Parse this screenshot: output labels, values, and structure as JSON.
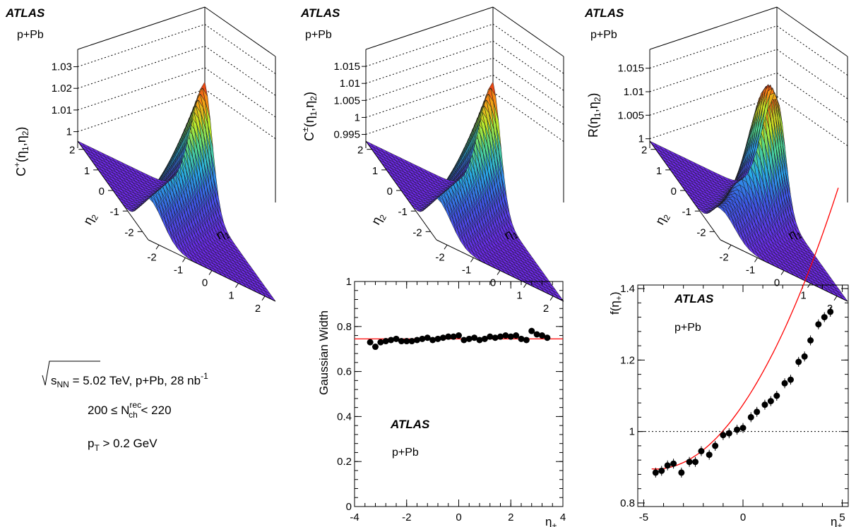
{
  "collaboration": "ATLAS",
  "system": "p+Pb",
  "info": {
    "sqrt_label": "s",
    "sqrt_sub": "NN",
    "energy_text": " = 5.02 TeV, p+Pb, 28 nb",
    "energy_sup": "-1",
    "mult_pre": "200 ≤ N",
    "mult_sup": "rec",
    "mult_sub": "ch",
    "mult_post": " < 220",
    "pt_pre": "p",
    "pt_sub": "T",
    "pt_post": " > 0.2 GeV"
  },
  "colors": {
    "fit_line": "#ff0000",
    "markers": "#000000"
  },
  "chart_data": [
    {
      "type": "surface",
      "zlabel": "C+(η1,η2)",
      "xlabel": "η1",
      "ylabel": "η2",
      "x_ticks": [
        "-2",
        "-1",
        "0",
        "1",
        "2"
      ],
      "y_ticks": [
        "-2",
        "-1",
        "0",
        "1",
        "2"
      ],
      "z_ticks": [
        "1",
        "1.01",
        "1.02",
        "1.03"
      ],
      "zlim": [
        0.994,
        1.038
      ],
      "peak": 1.036,
      "base": 0.996
    },
    {
      "type": "surface",
      "zlabel": "C±(η1,η2)",
      "xlabel": "η1",
      "ylabel": "η2",
      "x_ticks": [
        "-2",
        "-1",
        "0",
        "1",
        "2"
      ],
      "y_ticks": [
        "-2",
        "-1",
        "0",
        "1",
        "2"
      ],
      "z_ticks": [
        "0.995",
        "1",
        "1.005",
        "1.01",
        "1.015"
      ],
      "zlim": [
        0.992,
        1.02
      ],
      "peak": 1.018,
      "base": 0.993
    },
    {
      "type": "surface",
      "zlabel": "R(η1,η2)",
      "xlabel": "η1",
      "ylabel": "η2",
      "x_ticks": [
        "-2",
        "-1",
        "0",
        "1",
        "2"
      ],
      "y_ticks": [
        "-2",
        "-1",
        "0",
        "1",
        "2"
      ],
      "z_ticks": [
        "1",
        "1.005",
        "1.01",
        "1.015"
      ],
      "zlim": [
        0.998,
        1.019
      ],
      "peak": 1.018,
      "base": 0.999
    },
    {
      "type": "scatter",
      "ylabel": "Gaussian Width",
      "xlabel": "η+",
      "xlim": [
        -4,
        4
      ],
      "ylim": [
        0,
        1
      ],
      "x_ticks": [
        "-4",
        "-2",
        "0",
        "2",
        "4"
      ],
      "y_ticks": [
        "0",
        "0.2",
        "0.4",
        "0.6",
        "0.8",
        "1"
      ],
      "fit": {
        "type": "constant",
        "value": 0.745
      },
      "x": [
        -3.4,
        -3.2,
        -3.0,
        -2.8,
        -2.6,
        -2.4,
        -2.2,
        -2.0,
        -1.8,
        -1.6,
        -1.4,
        -1.2,
        -1.0,
        -0.8,
        -0.6,
        -0.4,
        -0.2,
        0.0,
        0.2,
        0.4,
        0.6,
        0.8,
        1.0,
        1.2,
        1.4,
        1.6,
        1.8,
        2.0,
        2.2,
        2.4,
        2.6,
        2.8,
        3.0,
        3.2,
        3.4
      ],
      "y": [
        0.73,
        0.71,
        0.73,
        0.735,
        0.74,
        0.745,
        0.735,
        0.735,
        0.735,
        0.74,
        0.745,
        0.75,
        0.74,
        0.745,
        0.75,
        0.755,
        0.755,
        0.76,
        0.74,
        0.745,
        0.75,
        0.74,
        0.745,
        0.755,
        0.75,
        0.755,
        0.76,
        0.755,
        0.76,
        0.745,
        0.74,
        0.78,
        0.765,
        0.76,
        0.75
      ]
    },
    {
      "type": "scatter",
      "ylabel": "f(η+)",
      "xlabel": "η+",
      "xlim": [
        -5.3,
        5.3
      ],
      "ylim": [
        0.79,
        1.41
      ],
      "x_ticks": [
        "-5",
        "0",
        "5"
      ],
      "y_ticks": [
        "0.8",
        "1",
        "1.2",
        "1.4"
      ],
      "reference_line": 1,
      "fit": {
        "type": "quadratic",
        "vertex_x": -4.4,
        "vertex_y": 0.895,
        "coeff": 0.0093,
        "xrange": [
          -4.6,
          4.8
        ]
      },
      "x": [
        -4.4,
        -4.1,
        -3.8,
        -3.5,
        -3.1,
        -2.7,
        -2.4,
        -2.1,
        -1.7,
        -1.4,
        -1.0,
        -0.7,
        -0.3,
        0.0,
        0.4,
        0.7,
        1.1,
        1.4,
        1.7,
        2.1,
        2.4,
        2.8,
        3.1,
        3.4,
        3.8,
        4.1,
        4.4
      ],
      "y": [
        0.885,
        0.89,
        0.905,
        0.91,
        0.885,
        0.915,
        0.915,
        0.945,
        0.935,
        0.96,
        0.99,
        0.995,
        1.005,
        1.01,
        1.04,
        1.055,
        1.075,
        1.085,
        1.1,
        1.135,
        1.145,
        1.195,
        1.21,
        1.255,
        1.3,
        1.32,
        1.335
      ]
    }
  ]
}
